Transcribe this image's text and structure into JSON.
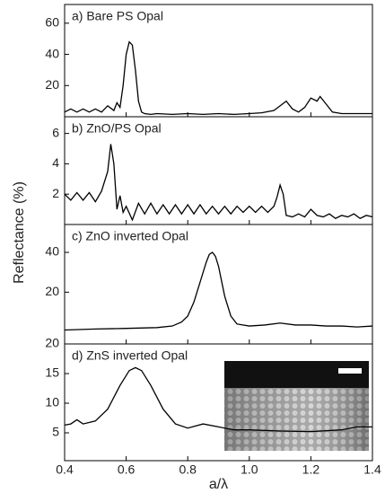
{
  "chart_data": [
    {
      "type": "line",
      "label": "a) Bare PS Opal",
      "ylabel": "Reflectance (%)",
      "color": "#000000",
      "x": [
        0.4,
        0.42,
        0.44,
        0.46,
        0.48,
        0.5,
        0.52,
        0.54,
        0.56,
        0.57,
        0.58,
        0.59,
        0.6,
        0.61,
        0.62,
        0.63,
        0.64,
        0.65,
        0.66,
        0.68,
        0.7,
        0.75,
        0.8,
        0.85,
        0.9,
        0.95,
        1.0,
        1.04,
        1.08,
        1.1,
        1.12,
        1.14,
        1.16,
        1.18,
        1.2,
        1.22,
        1.23,
        1.25,
        1.27,
        1.3,
        1.35,
        1.4
      ],
      "values": [
        3,
        5,
        3,
        5,
        3,
        5,
        3,
        7,
        4,
        9,
        6,
        20,
        40,
        48,
        46,
        30,
        10,
        3,
        2,
        1.5,
        2,
        1.5,
        2,
        1.5,
        2,
        1.5,
        2,
        2.5,
        4,
        7,
        10,
        5,
        3,
        6,
        12,
        10,
        13,
        8,
        3,
        2,
        2,
        2
      ],
      "xlim": [
        0.4,
        1.4
      ],
      "ylim": [
        0,
        72
      ],
      "yticks": [
        20,
        40,
        60
      ]
    },
    {
      "type": "line",
      "label": "b) ZnO/PS Opal",
      "color": "#000000",
      "x": [
        0.4,
        0.42,
        0.44,
        0.46,
        0.48,
        0.5,
        0.52,
        0.54,
        0.55,
        0.56,
        0.57,
        0.58,
        0.59,
        0.6,
        0.62,
        0.64,
        0.66,
        0.68,
        0.7,
        0.72,
        0.74,
        0.76,
        0.78,
        0.8,
        0.82,
        0.84,
        0.86,
        0.88,
        0.9,
        0.92,
        0.94,
        0.96,
        0.98,
        1.0,
        1.02,
        1.04,
        1.06,
        1.08,
        1.09,
        1.1,
        1.11,
        1.12,
        1.14,
        1.16,
        1.18,
        1.2,
        1.22,
        1.24,
        1.26,
        1.28,
        1.3,
        1.32,
        1.34,
        1.36,
        1.38,
        1.4
      ],
      "values": [
        2,
        1.6,
        2.1,
        1.6,
        2.1,
        1.5,
        2.2,
        3.5,
        5.3,
        4,
        1,
        1.9,
        0.8,
        1.2,
        0.3,
        1.4,
        0.7,
        1.4,
        0.7,
        1.3,
        0.7,
        1.3,
        0.7,
        1.3,
        0.7,
        1.3,
        0.7,
        1.2,
        0.7,
        1.2,
        0.7,
        1.2,
        0.8,
        1.2,
        0.8,
        1.2,
        0.8,
        1.2,
        1.8,
        2.6,
        2,
        0.6,
        0.5,
        0.7,
        0.5,
        1,
        0.6,
        0.5,
        0.7,
        0.4,
        0.6,
        0.5,
        0.7,
        0.4,
        0.6,
        0.5
      ],
      "xlim": [
        0.4,
        1.4
      ],
      "ylim": [
        0,
        7.1
      ],
      "yticks": [
        2,
        4,
        6
      ]
    },
    {
      "type": "line",
      "label": "c) ZnO inverted Opal",
      "color": "#000000",
      "x": [
        0.4,
        0.5,
        0.6,
        0.7,
        0.75,
        0.78,
        0.8,
        0.82,
        0.84,
        0.86,
        0.87,
        0.88,
        0.89,
        0.9,
        0.92,
        0.94,
        0.96,
        1.0,
        1.05,
        1.1,
        1.15,
        1.2,
        1.25,
        1.3,
        1.35,
        1.4
      ],
      "values": [
        1,
        1.5,
        1.8,
        2.2,
        3,
        5,
        8,
        15,
        25,
        35,
        39,
        40,
        38,
        33,
        18,
        8,
        4,
        3,
        3.5,
        4.5,
        3.5,
        3.5,
        3,
        3,
        2.5,
        3
      ],
      "xlim": [
        0.4,
        1.4
      ],
      "ylim": [
        -6,
        54
      ],
      "yticks": [
        20,
        40
      ]
    },
    {
      "type": "line",
      "label": "d) ZnS inverted Opal",
      "xlabel": "a/λ",
      "color": "#000000",
      "x": [
        0.4,
        0.42,
        0.44,
        0.46,
        0.5,
        0.54,
        0.58,
        0.61,
        0.63,
        0.65,
        0.68,
        0.72,
        0.76,
        0.8,
        0.85,
        0.9,
        0.95,
        1.0,
        1.1,
        1.2,
        1.3,
        1.35,
        1.4
      ],
      "values": [
        6.3,
        6.5,
        7.2,
        6.5,
        7,
        9,
        13,
        15.5,
        16,
        15.5,
        13,
        9,
        6.5,
        5.8,
        6.5,
        6,
        5.5,
        5.5,
        5.3,
        5.2,
        5.5,
        6,
        6
      ],
      "xlim": [
        0.4,
        1.4
      ],
      "ylim": [
        0.3,
        20
      ],
      "yticks": [
        5,
        10,
        15,
        20
      ],
      "xticks": [
        0.4,
        0.6,
        0.8,
        {
          "value": 1,
          "label": "1.0"
        },
        1.2,
        1.4
      ]
    }
  ]
}
